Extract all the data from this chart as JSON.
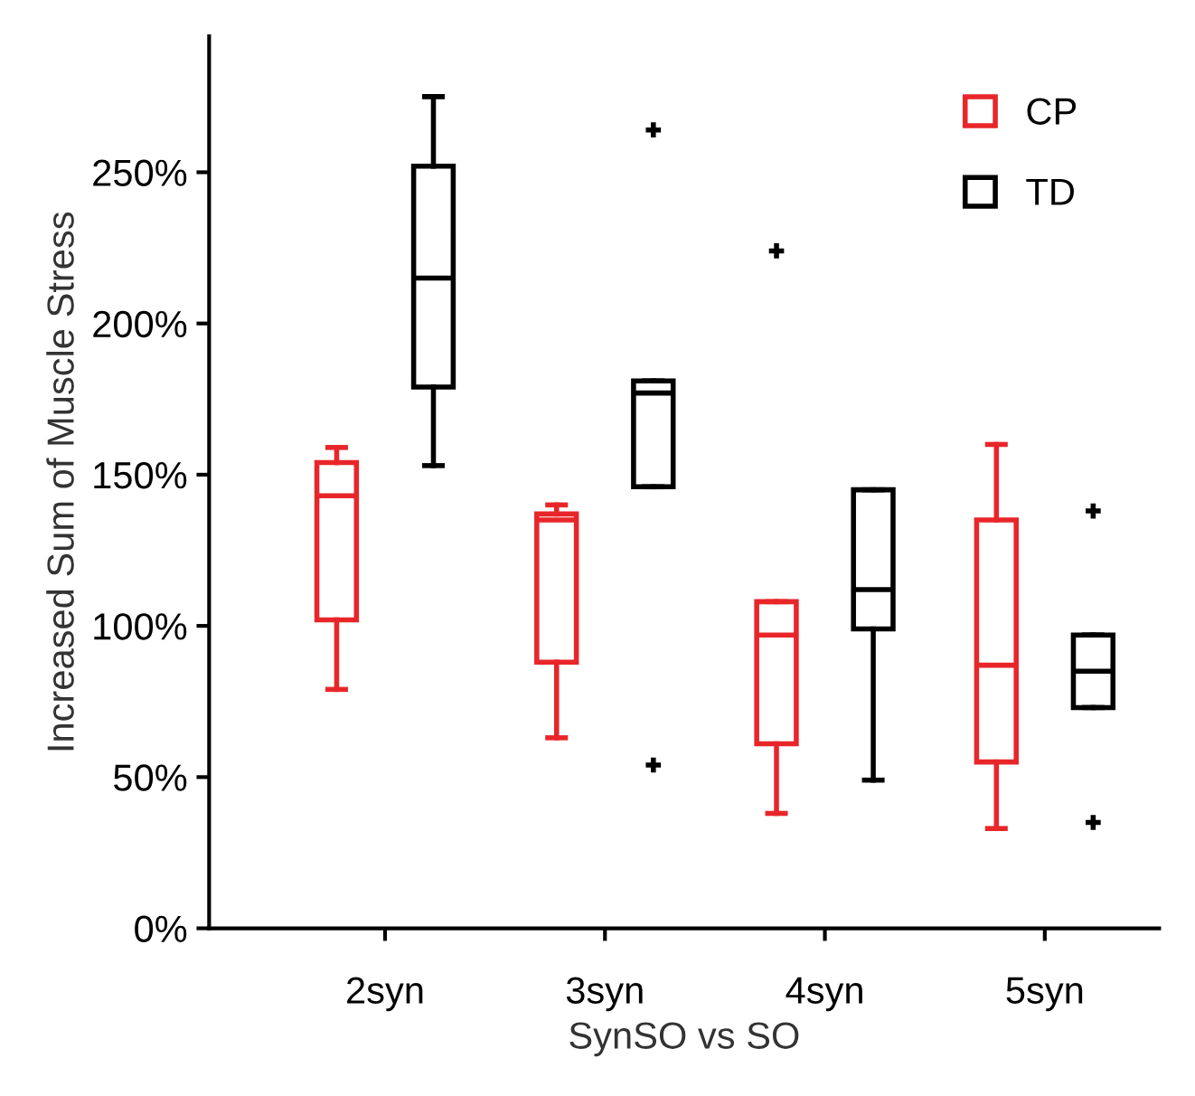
{
  "chart_data": {
    "type": "box",
    "xlabel": "SynSO vs SO",
    "ylabel": "Increased Sum of Muscle Stress",
    "categories": [
      "2syn",
      "3syn",
      "4syn",
      "5syn"
    ],
    "series": [
      {
        "name": "CP",
        "color": "#e8262a",
        "boxes": [
          {
            "low": 79,
            "q1": 102,
            "median": 143,
            "q3": 154,
            "high": 159
          },
          {
            "low": 63,
            "q1": 88,
            "median": 135,
            "q3": 137,
            "high": 140
          },
          {
            "low": 38,
            "q1": 61,
            "median": 97,
            "q3": 108,
            "high": 108,
            "outliers": [
              224
            ]
          },
          {
            "low": 33,
            "q1": 55,
            "median": 87,
            "q3": 135,
            "high": 160
          }
        ]
      },
      {
        "name": "TD",
        "color": "#000000",
        "boxes": [
          {
            "low": 153,
            "q1": 179,
            "median": 215,
            "q3": 252,
            "high": 275
          },
          {
            "low": 146,
            "q1": 146,
            "median": 177,
            "q3": 181,
            "high": 181,
            "outliers": [
              264,
              54
            ]
          },
          {
            "low": 49,
            "q1": 99,
            "median": 112,
            "q3": 145,
            "high": 145
          },
          {
            "low": 73,
            "q1": 73,
            "median": 85,
            "q3": 97,
            "high": 97,
            "outliers": [
              138,
              35
            ]
          }
        ]
      }
    ],
    "ylim": [
      0,
      295
    ],
    "yticks": [
      {
        "value": 0,
        "label": "0%"
      },
      {
        "value": 50,
        "label": "50%"
      },
      {
        "value": 100,
        "label": "100%"
      },
      {
        "value": 150,
        "label": "150%"
      },
      {
        "value": 200,
        "label": "200%"
      },
      {
        "value": 250,
        "label": "250%"
      }
    ],
    "legend": "top right",
    "grid": false
  }
}
